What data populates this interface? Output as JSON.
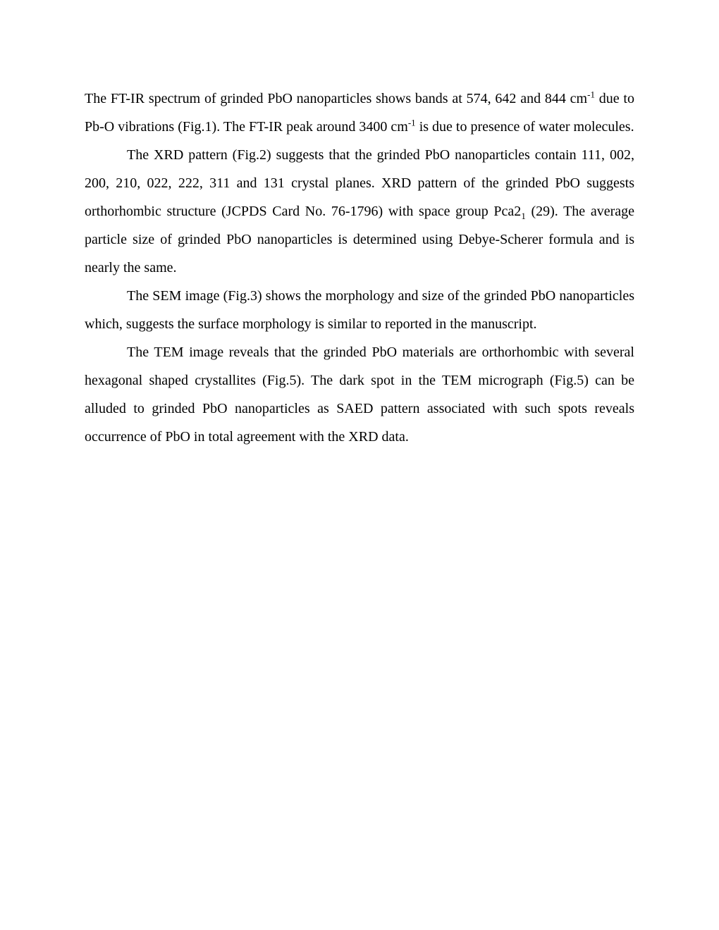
{
  "document": {
    "font_family": "Times New Roman",
    "font_size_pt": 12,
    "line_height": 2.0,
    "text_align": "justify",
    "text_color": "#000000",
    "background_color": "#ffffff",
    "p1": {
      "pre1": "The FT-IR spectrum of grinded PbO nanoparticles shows bands at 574, 642 and 844 cm",
      "sup1": "-1",
      "mid1": " due to Pb-O vibrations (Fig.1). The FT-IR peak around 3400 cm",
      "sup2": "-1",
      "post1": " is due to presence of water molecules."
    },
    "p2": {
      "pre1": "The XRD pattern (Fig.2) suggests that the grinded PbO nanoparticles contain 111, 002, 200, 210, 022, 222, 311 and 131 crystal planes. XRD pattern of the grinded PbO suggests orthorhombic structure (JCPDS Card No. 76-1796) with space group Pca2",
      "sub1": "1",
      "post1": " (29). The average particle size of grinded PbO nanoparticles is determined using Debye-Scherer formula and is nearly the same."
    },
    "p3": "The SEM image (Fig.3) shows the morphology and size of the grinded PbO nanoparticles which, suggests the surface morphology is similar to reported in the manuscript.",
    "p4": "The TEM image reveals that the grinded PbO materials are orthorhombic with several hexagonal shaped crystallites (Fig.5). The dark spot in the TEM micrograph (Fig.5) can be alluded to grinded PbO nanoparticles as SAED pattern associated with such spots reveals occurrence of PbO in total agreement with the XRD data."
  }
}
